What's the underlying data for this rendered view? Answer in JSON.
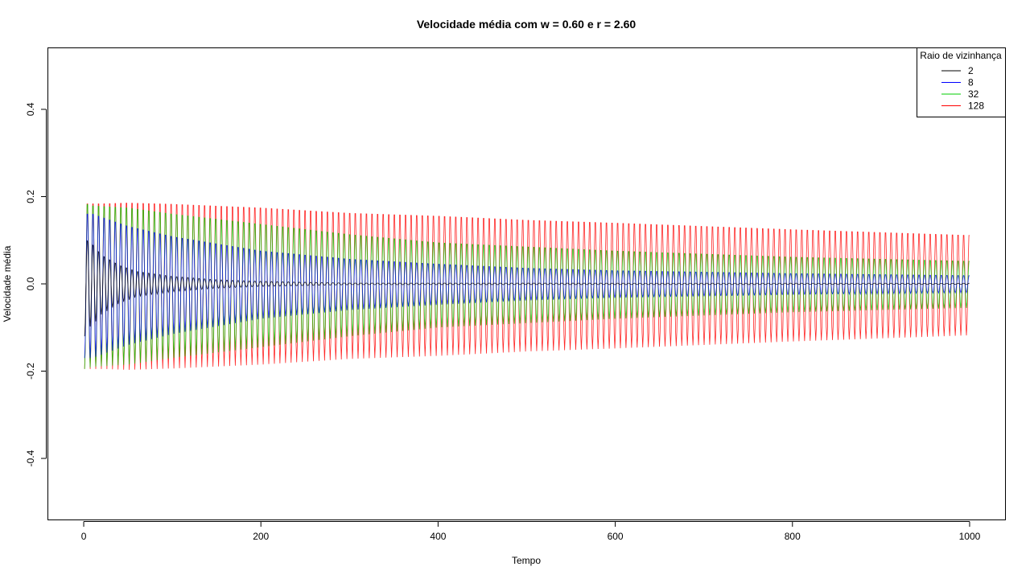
{
  "chart_data": {
    "type": "line",
    "title": "Velocidade média com w = 0.60 e r = 2.60",
    "xlabel": "Tempo",
    "ylabel": "Velocidade média",
    "xlim": [
      -40,
      1040
    ],
    "ylim": [
      -0.54,
      0.54
    ],
    "x_ticks": [
      0,
      200,
      400,
      600,
      800,
      1000
    ],
    "y_ticks": [
      -0.4,
      -0.2,
      0.0,
      0.2,
      0.4
    ],
    "x_tick_labels": [
      "0",
      "200",
      "400",
      "600",
      "800",
      "1000"
    ],
    "y_tick_labels": [
      "-0.4",
      "-0.2",
      "0.0",
      "0.2",
      "0.4"
    ],
    "grid": false,
    "legend": {
      "title": "Raio de vizinhança",
      "position": "top-right",
      "entries": [
        "2",
        "8",
        "32",
        "128"
      ]
    },
    "x_range": [
      1,
      1000
    ],
    "oscillation_period": 6.3,
    "series": [
      {
        "name": "2",
        "color": "#000000",
        "envelope_t": [
          1,
          5,
          10,
          20,
          40,
          60,
          100,
          150,
          200,
          300,
          1000
        ],
        "envelope_amp": [
          0.12,
          0.1,
          0.095,
          0.07,
          0.045,
          0.03,
          0.018,
          0.01,
          0.006,
          0.002,
          0.0015
        ]
      },
      {
        "name": "8",
        "color": "#0000ff",
        "envelope_t": [
          1,
          10,
          50,
          100,
          200,
          300,
          400,
          500,
          600,
          800,
          1000
        ],
        "envelope_amp": [
          0.17,
          0.17,
          0.14,
          0.115,
          0.08,
          0.06,
          0.048,
          0.038,
          0.032,
          0.025,
          0.02
        ]
      },
      {
        "name": "32",
        "color": "#00cc00",
        "envelope_t": [
          1,
          10,
          50,
          100,
          200,
          300,
          400,
          500,
          600,
          800,
          1000
        ],
        "envelope_amp": [
          0.195,
          0.19,
          0.185,
          0.17,
          0.145,
          0.12,
          0.1,
          0.09,
          0.08,
          0.065,
          0.055
        ]
      },
      {
        "name": "128",
        "color": "#ff0000",
        "envelope_t": [
          1,
          20,
          50,
          100,
          200,
          300,
          400,
          500,
          600,
          800,
          1000
        ],
        "envelope_amp": [
          0.195,
          0.195,
          0.197,
          0.194,
          0.185,
          0.172,
          0.165,
          0.155,
          0.148,
          0.132,
          0.118
        ]
      }
    ]
  }
}
